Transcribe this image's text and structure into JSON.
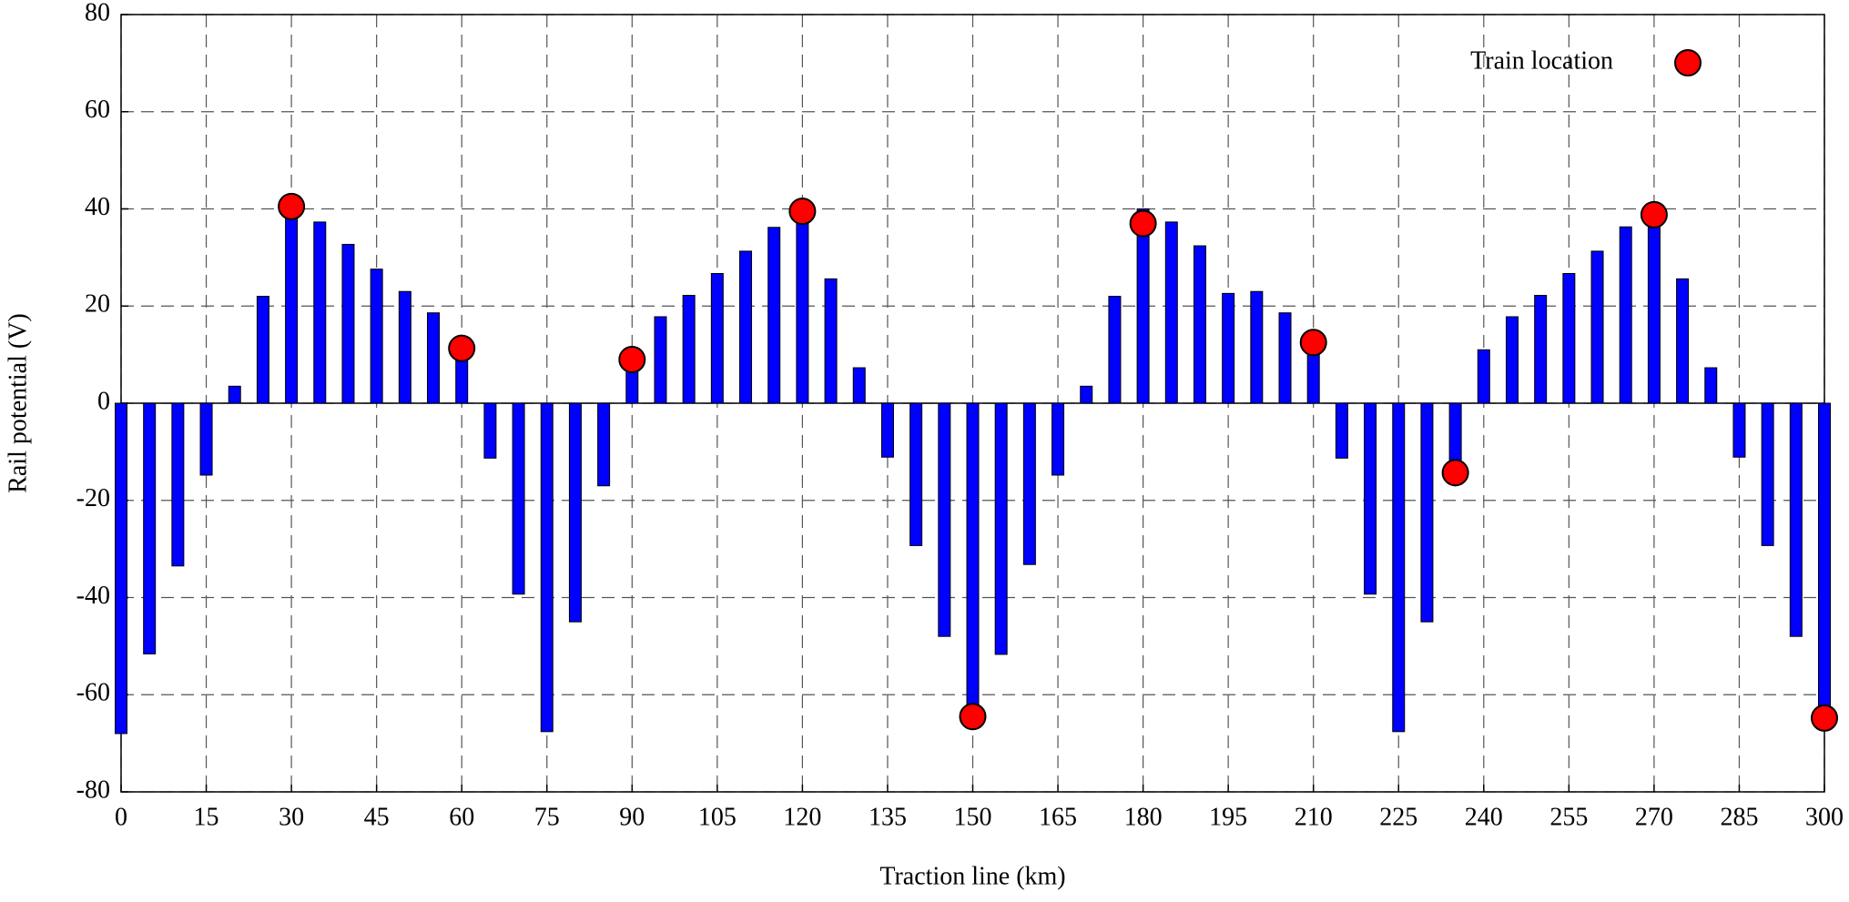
{
  "chart_data": {
    "type": "bar",
    "xlabel": "Traction line (km)",
    "ylabel": "Rail potential (V)",
    "xlim": [
      0,
      300
    ],
    "xticks": [
      0,
      15,
      30,
      45,
      60,
      75,
      90,
      105,
      120,
      135,
      150,
      165,
      180,
      195,
      210,
      225,
      240,
      255,
      270,
      285,
      300
    ],
    "ylim": [
      -80,
      80
    ],
    "yticks": [
      -80,
      -60,
      -40,
      -20,
      0,
      20,
      40,
      60,
      80
    ],
    "grid": true,
    "legend": "upper right",
    "series": [
      {
        "type": "bar",
        "color": "#0000ff",
        "x": [
          0,
          5,
          10,
          15,
          20,
          25,
          30,
          35,
          40,
          45,
          50,
          55,
          60,
          65,
          70,
          75,
          80,
          85,
          90,
          95,
          100,
          105,
          110,
          115,
          120,
          125,
          130,
          135,
          140,
          145,
          150,
          155,
          160,
          165,
          170,
          175,
          180,
          185,
          190,
          195,
          200,
          205,
          210,
          215,
          220,
          225,
          230,
          235,
          240,
          245,
          250,
          255,
          260,
          265,
          270,
          275,
          280,
          285,
          290,
          295,
          300
        ],
        "values": [
          -68,
          -51.6,
          -33.5,
          -14.8,
          3.5,
          22,
          40,
          37.3,
          32.7,
          27.6,
          23,
          18.6,
          11,
          -11.3,
          -39.3,
          -67.6,
          -45,
          -17,
          9,
          17.8,
          22.2,
          26.7,
          31.3,
          36.2,
          39.5,
          25.6,
          7.3,
          -11.1,
          -29.3,
          -48,
          -64.5,
          -51.7,
          -33.2,
          -14.8,
          3.5,
          22,
          40,
          37.3,
          32.4,
          22.6,
          23,
          18.6,
          12.5,
          -11.3,
          -39.3,
          -67.6,
          -45,
          -14.3,
          11,
          17.8,
          22.2,
          26.7,
          31.3,
          36.3,
          38.8,
          25.6,
          7.3,
          -11.1,
          -29.3,
          -48,
          -64.5
        ]
      },
      {
        "type": "scatter",
        "name": "Train location",
        "color": "#ff0000",
        "x": [
          30,
          60,
          90,
          120,
          150,
          180,
          210,
          235,
          270,
          300
        ],
        "values": [
          40.5,
          11.3,
          9,
          39.5,
          -64.5,
          37,
          12.5,
          -14.3,
          38.8,
          -64.8
        ]
      }
    ]
  }
}
